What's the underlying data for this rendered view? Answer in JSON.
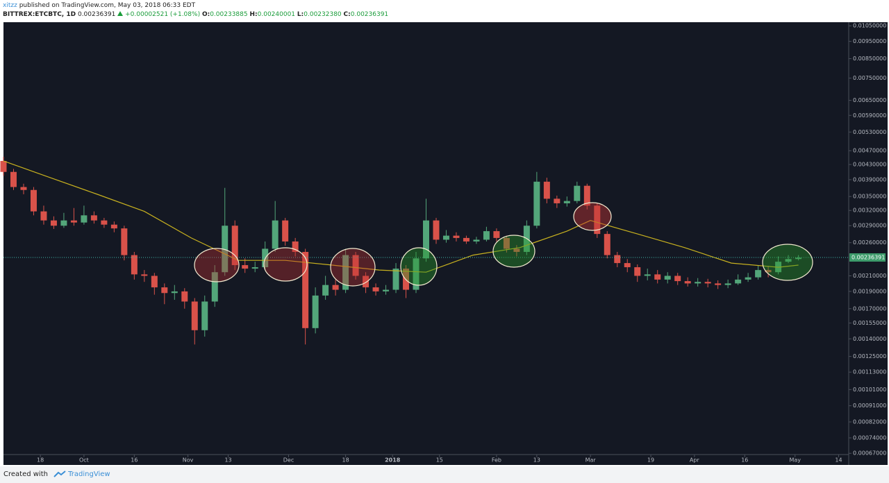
{
  "header": {
    "author": "xitzz",
    "published": "published on TradingView.com, May 03, 2018 06:33 EDT",
    "symbol": "BITTREX:ETCBTC, 1D",
    "price": "0.00236391",
    "change": "+0.00002521 (+1.08%)",
    "ohlc": [
      {
        "label": "O:",
        "value": "0.00233885"
      },
      {
        "label": "H:",
        "value": "0.00240001"
      },
      {
        "label": "L:",
        "value": "0.00232380"
      },
      {
        "label": "C:",
        "value": "0.00236391"
      }
    ]
  },
  "footer": {
    "text": "Created with",
    "brand": "TradingView"
  },
  "chart_data": {
    "type": "candlestick",
    "log_scale": true,
    "up_color": "#53a67a",
    "down_color": "#d9524a",
    "background": "#141823",
    "x": [
      "2017-09-07",
      "2017-09-10",
      "2017-09-13",
      "2017-09-16",
      "2017-09-19",
      "2017-09-22",
      "2017-09-25",
      "2017-09-28",
      "2017-10-01",
      "2017-10-04",
      "2017-10-07",
      "2017-10-10",
      "2017-10-13",
      "2017-10-16",
      "2017-10-19",
      "2017-10-22",
      "2017-10-25",
      "2017-10-28",
      "2017-10-31",
      "2017-11-03",
      "2017-11-06",
      "2017-11-09",
      "2017-11-12",
      "2017-11-15",
      "2017-11-18",
      "2017-11-21",
      "2017-11-24",
      "2017-11-27",
      "2017-11-30",
      "2017-12-03",
      "2017-12-06",
      "2017-12-09",
      "2017-12-12",
      "2017-12-15",
      "2017-12-18",
      "2017-12-21",
      "2017-12-24",
      "2017-12-27",
      "2017-12-30",
      "2018-01-02",
      "2018-01-05",
      "2018-01-08",
      "2018-01-11",
      "2018-01-14",
      "2018-01-17",
      "2018-01-20",
      "2018-01-23",
      "2018-01-26",
      "2018-01-29",
      "2018-02-01",
      "2018-02-04",
      "2018-02-07",
      "2018-02-10",
      "2018-02-13",
      "2018-02-16",
      "2018-02-19",
      "2018-02-22",
      "2018-02-25",
      "2018-02-28",
      "2018-03-03",
      "2018-03-06",
      "2018-03-09",
      "2018-03-12",
      "2018-03-15",
      "2018-03-18",
      "2018-03-21",
      "2018-03-24",
      "2018-03-27",
      "2018-03-30",
      "2018-04-02",
      "2018-04-05",
      "2018-04-08",
      "2018-04-11",
      "2018-04-14",
      "2018-04-17",
      "2018-04-20",
      "2018-04-23",
      "2018-04-26",
      "2018-04-29",
      "2018-05-02"
    ],
    "open": [
      0.0044,
      0.0041,
      0.00372,
      0.00365,
      0.00318,
      0.003,
      0.0029,
      0.003,
      0.00296,
      0.0031,
      0.003,
      0.00292,
      0.00285,
      0.0024,
      0.00212,
      0.0021,
      0.00195,
      0.00188,
      0.0019,
      0.00178,
      0.00148,
      0.00178,
      0.00215,
      0.0029,
      0.00225,
      0.0022,
      0.00222,
      0.0025,
      0.003,
      0.00262,
      0.00245,
      0.0015,
      0.00185,
      0.00198,
      0.00192,
      0.0024,
      0.0021,
      0.00195,
      0.0019,
      0.00192,
      0.0022,
      0.00192,
      0.00235,
      0.003,
      0.00265,
      0.00272,
      0.00268,
      0.00262,
      0.00265,
      0.0028,
      0.00268,
      0.0025,
      0.00245,
      0.0029,
      0.00385,
      0.00345,
      0.00335,
      0.0034,
      0.00375,
      0.0033,
      0.00275,
      0.0024,
      0.00228,
      0.00222,
      0.0021,
      0.00212,
      0.00205,
      0.0021,
      0.00203,
      0.002,
      0.00202,
      0.002,
      0.00198,
      0.002,
      0.00205,
      0.00208,
      0.00218,
      0.00215,
      0.0023,
      0.00234
    ],
    "high": [
      0.00452,
      0.00418,
      0.0038,
      0.00372,
      0.0033,
      0.00308,
      0.00315,
      0.00325,
      0.0033,
      0.00318,
      0.00305,
      0.00298,
      0.0029,
      0.00245,
      0.00218,
      0.00214,
      0.002,
      0.00198,
      0.00194,
      0.00182,
      0.00185,
      0.00225,
      0.0037,
      0.003,
      0.00235,
      0.0023,
      0.00262,
      0.0034,
      0.00305,
      0.00268,
      0.0025,
      0.00195,
      0.0021,
      0.00205,
      0.0025,
      0.00245,
      0.00215,
      0.002,
      0.00198,
      0.00228,
      0.00225,
      0.00245,
      0.00345,
      0.00305,
      0.00282,
      0.00278,
      0.00272,
      0.0027,
      0.00288,
      0.00285,
      0.00272,
      0.00256,
      0.003,
      0.0041,
      0.00395,
      0.00352,
      0.0035,
      0.00385,
      0.0038,
      0.00335,
      0.0028,
      0.00245,
      0.00234,
      0.00226,
      0.0022,
      0.00218,
      0.00215,
      0.00214,
      0.00208,
      0.00207,
      0.00206,
      0.00204,
      0.00205,
      0.00212,
      0.00214,
      0.00225,
      0.00224,
      0.00238,
      0.0024,
      0.0024
    ],
    "low": [
      0.004,
      0.00365,
      0.00355,
      0.0031,
      0.00292,
      0.00284,
      0.00286,
      0.0029,
      0.00292,
      0.00294,
      0.00286,
      0.00278,
      0.00232,
      0.00205,
      0.00202,
      0.00186,
      0.00175,
      0.0018,
      0.0017,
      0.00135,
      0.00142,
      0.00172,
      0.0021,
      0.00218,
      0.00214,
      0.00215,
      0.00218,
      0.00245,
      0.00255,
      0.00238,
      0.00135,
      0.00145,
      0.0018,
      0.00185,
      0.00188,
      0.00205,
      0.00188,
      0.00185,
      0.00186,
      0.00188,
      0.00182,
      0.00188,
      0.0023,
      0.00258,
      0.0026,
      0.00262,
      0.00258,
      0.00258,
      0.00262,
      0.00262,
      0.00244,
      0.00238,
      0.0024,
      0.00285,
      0.00335,
      0.00325,
      0.00328,
      0.00335,
      0.00322,
      0.00268,
      0.00235,
      0.00222,
      0.00215,
      0.00202,
      0.00204,
      0.002,
      0.002,
      0.00198,
      0.00196,
      0.00196,
      0.00195,
      0.00193,
      0.00194,
      0.00198,
      0.00202,
      0.00205,
      0.00208,
      0.00212,
      0.00228,
      0.00232
    ],
    "close": [
      0.0041,
      0.00372,
      0.00365,
      0.00318,
      0.003,
      0.0029,
      0.003,
      0.00296,
      0.0031,
      0.003,
      0.00292,
      0.00285,
      0.0024,
      0.00212,
      0.0021,
      0.00195,
      0.00188,
      0.0019,
      0.00178,
      0.00148,
      0.00178,
      0.00215,
      0.0029,
      0.00225,
      0.0022,
      0.00222,
      0.0025,
      0.003,
      0.00262,
      0.00245,
      0.0015,
      0.00185,
      0.00198,
      0.00192,
      0.0024,
      0.0021,
      0.00195,
      0.0019,
      0.00192,
      0.0022,
      0.00192,
      0.00235,
      0.003,
      0.00265,
      0.00272,
      0.00268,
      0.00262,
      0.00265,
      0.0028,
      0.00268,
      0.0025,
      0.00245,
      0.0029,
      0.00385,
      0.00345,
      0.00335,
      0.0034,
      0.00375,
      0.0033,
      0.00275,
      0.0024,
      0.00228,
      0.00222,
      0.0021,
      0.00212,
      0.00205,
      0.0021,
      0.00203,
      0.002,
      0.00202,
      0.002,
      0.00198,
      0.002,
      0.00205,
      0.00208,
      0.00218,
      0.00215,
      0.0023,
      0.00234,
      0.00236
    ],
    "moving_average": {
      "color": "#c9b21f",
      "x": [
        "2017-09-07",
        "2017-09-21",
        "2017-10-05",
        "2017-10-19",
        "2017-11-02",
        "2017-11-16",
        "2017-11-30",
        "2017-12-14",
        "2017-12-28",
        "2018-01-11",
        "2018-01-25",
        "2018-02-08",
        "2018-02-22",
        "2018-03-01",
        "2018-03-15",
        "2018-03-29",
        "2018-04-12",
        "2018-04-26",
        "2018-05-02"
      ],
      "values": [
        0.0044,
        0.00395,
        0.00355,
        0.00318,
        0.00268,
        0.00232,
        0.00232,
        0.00225,
        0.00218,
        0.00215,
        0.0024,
        0.00252,
        0.0028,
        0.003,
        0.00275,
        0.00252,
        0.00228,
        0.00222,
        0.00225
      ]
    },
    "last_price": {
      "value": 0.00236391,
      "label": "0.00236391"
    },
    "xlim": [
      "2017-09-07",
      "2018-05-17"
    ],
    "xticks": [
      {
        "value": "2017-09-18",
        "label": "18"
      },
      {
        "value": "2017-10-01",
        "label": "Oct"
      },
      {
        "value": "2017-10-16",
        "label": "16"
      },
      {
        "value": "2017-11-01",
        "label": "Nov"
      },
      {
        "value": "2017-11-13",
        "label": "13"
      },
      {
        "value": "2017-12-01",
        "label": "Dec"
      },
      {
        "value": "2017-12-18",
        "label": "18"
      },
      {
        "value": "2018-01-01",
        "label": "2018"
      },
      {
        "value": "2018-01-15",
        "label": "15"
      },
      {
        "value": "2018-02-01",
        "label": "Feb"
      },
      {
        "value": "2018-02-13",
        "label": "13"
      },
      {
        "value": "2018-03-01",
        "label": "Mar"
      },
      {
        "value": "2018-03-19",
        "label": "19"
      },
      {
        "value": "2018-04-01",
        "label": "Apr"
      },
      {
        "value": "2018-04-16",
        "label": "16"
      },
      {
        "value": "2018-05-01",
        "label": "May"
      },
      {
        "value": "2018-05-14",
        "label": "14"
      }
    ],
    "ylim": [
      0.00065,
      0.0107
    ],
    "yticks": [
      {
        "value": 0.0105,
        "label": "0.01050000"
      },
      {
        "value": 0.0095,
        "label": "0.00950000"
      },
      {
        "value": 0.0085,
        "label": "0.00850000"
      },
      {
        "value": 0.0075,
        "label": "0.00750000"
      },
      {
        "value": 0.0065,
        "label": "0.00650000"
      },
      {
        "value": 0.0059,
        "label": "0.00590000"
      },
      {
        "value": 0.0053,
        "label": "0.00530000"
      },
      {
        "value": 0.0047,
        "label": "0.00470000"
      },
      {
        "value": 0.0043,
        "label": "0.00430000"
      },
      {
        "value": 0.0039,
        "label": "0.00390000"
      },
      {
        "value": 0.0035,
        "label": "0.00350000"
      },
      {
        "value": 0.0032,
        "label": "0.00320000"
      },
      {
        "value": 0.0029,
        "label": "0.00290000"
      },
      {
        "value": 0.0026,
        "label": "0.00260000"
      },
      {
        "value": 0.0021,
        "label": "0.00210000"
      },
      {
        "value": 0.0019,
        "label": "0.00190000"
      },
      {
        "value": 0.0017,
        "label": "0.00170000"
      },
      {
        "value": 0.00155,
        "label": "0.00155000"
      },
      {
        "value": 0.0014,
        "label": "0.00140000"
      },
      {
        "value": 0.00125,
        "label": "0.00125000"
      },
      {
        "value": 0.00113,
        "label": "0.00113000"
      },
      {
        "value": 0.00101,
        "label": "0.00101000"
      },
      {
        "value": 0.00091,
        "label": "0.00091000"
      },
      {
        "value": 0.00082,
        "label": "0.00082000"
      },
      {
        "value": 0.00074,
        "label": "0.00074000"
      },
      {
        "value": 0.00067,
        "label": "0.00067000"
      }
    ]
  }
}
